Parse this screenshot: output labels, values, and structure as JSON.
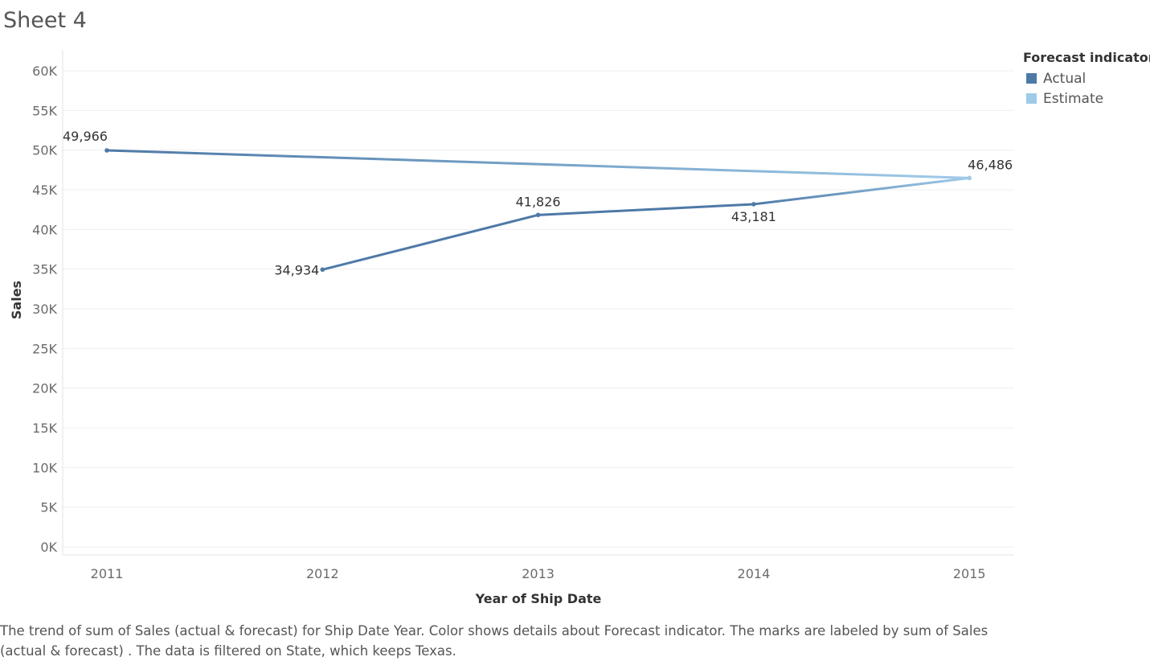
{
  "sheet": {
    "title": "Sheet 4"
  },
  "legend": {
    "title": "Forecast indicator",
    "items": [
      {
        "label": "Actual",
        "color": "#4e79a7"
      },
      {
        "label": "Estimate",
        "color": "#a0cbe8"
      }
    ]
  },
  "chart_data": {
    "type": "line",
    "xlabel": "Year of Ship Date",
    "ylabel": "Sales",
    "categories": [
      "2011",
      "2012",
      "2013",
      "2014",
      "2015"
    ],
    "ylim": [
      0,
      60000
    ],
    "yticks": [
      0,
      5000,
      10000,
      15000,
      20000,
      25000,
      30000,
      35000,
      40000,
      45000,
      50000,
      55000,
      60000
    ],
    "ytick_labels": [
      "0K",
      "5K",
      "10K",
      "15K",
      "20K",
      "25K",
      "30K",
      "35K",
      "40K",
      "45K",
      "50K",
      "55K",
      "60K"
    ],
    "grid": true,
    "legend_position": "top-right",
    "segments": [
      {
        "from": "2011",
        "to": "2015"
      },
      {
        "from": "2012",
        "to": "2013"
      },
      {
        "from": "2013",
        "to": "2014"
      },
      {
        "from": "2014",
        "to": "2015"
      }
    ],
    "points": [
      {
        "x": "2011",
        "y": 49966,
        "label": "49,966",
        "indicator": "Actual"
      },
      {
        "x": "2012",
        "y": 34934,
        "label": "34,934",
        "indicator": "Actual"
      },
      {
        "x": "2013",
        "y": 41826,
        "label": "41,826",
        "indicator": "Actual"
      },
      {
        "x": "2014",
        "y": 43181,
        "label": "43,181",
        "indicator": "Actual"
      },
      {
        "x": "2015",
        "y": 46486,
        "label": "46,486",
        "indicator": "Estimate"
      }
    ]
  },
  "caption": "The trend of sum of Sales (actual & forecast)  for Ship Date Year.  Color shows details about Forecast indicator.  The marks are labeled by sum of Sales (actual & forecast) . The data is filtered on State, which keeps Texas."
}
